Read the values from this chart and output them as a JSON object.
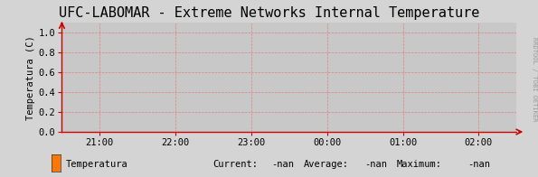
{
  "title": "UFC-LABOMAR - Extreme Networks Internal Temperature",
  "ylabel": "Temperatura (C)",
  "background_color": "#d4d4d4",
  "plot_bg_color": "#c8c8c8",
  "grid_color": "#e08080",
  "axis_color": "#cc0000",
  "title_fontsize": 11,
  "label_fontsize": 7.5,
  "tick_fontsize": 7.5,
  "ylim": [
    0.0,
    1.1
  ],
  "yticks": [
    0.0,
    0.2,
    0.4,
    0.6,
    0.8,
    1.0
  ],
  "xtick_labels": [
    "21:00",
    "22:00",
    "23:00",
    "00:00",
    "01:00",
    "02:00"
  ],
  "legend_label": "Temperatura",
  "legend_color": "#ff7700",
  "current_val": "-nan",
  "average_val": "-nan",
  "maximum_val": "-nan",
  "right_label": "RRDTOOL / TOBI OETIKER",
  "font_family": "monospace"
}
